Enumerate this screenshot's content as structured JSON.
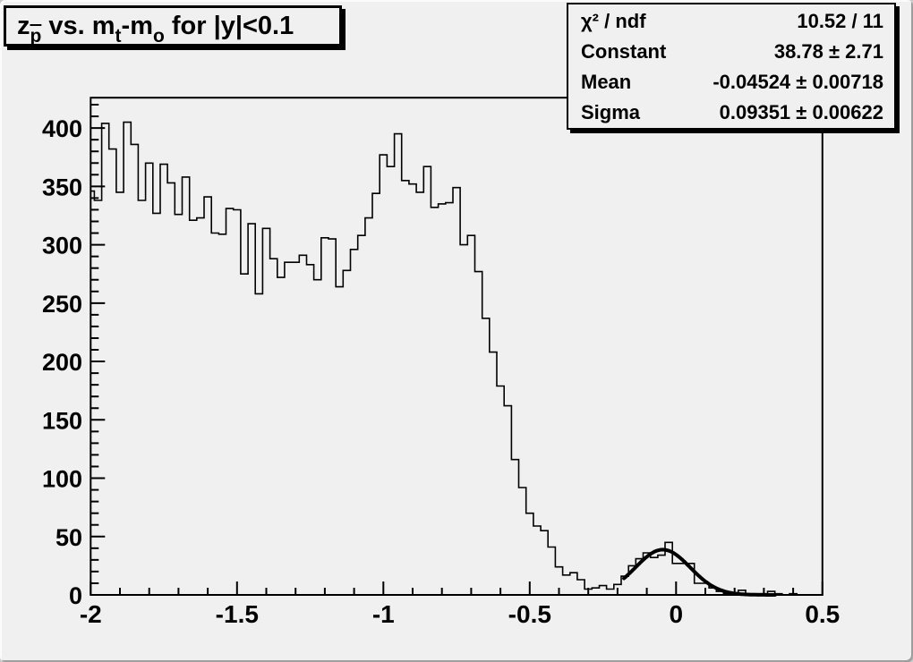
{
  "canvas": {
    "bg": "#f0f0f0",
    "line_color": "#000000"
  },
  "title_box": {
    "segments": [
      {
        "text": "z",
        "sub": false,
        "bar": false
      },
      {
        "text": "p",
        "sub": true,
        "bar": true
      },
      {
        "text": " vs. m",
        "sub": false,
        "bar": false
      },
      {
        "text": "t",
        "sub": true,
        "bar": false
      },
      {
        "text": "-m",
        "sub": false,
        "bar": false
      },
      {
        "text": "o",
        "sub": true,
        "bar": false
      },
      {
        "text": " for |y|<0.1",
        "sub": false,
        "bar": false
      }
    ]
  },
  "stats_box": {
    "rows": [
      {
        "label": "χ² / ndf",
        "value": "10.52 / 11"
      },
      {
        "label": "Constant",
        "value": "38.78 ± 2.71"
      },
      {
        "label": "Mean",
        "value": "-0.04524 ± 0.00718"
      },
      {
        "label": "Sigma",
        "value": "0.09351 ± 0.00622"
      }
    ]
  },
  "chart_data": {
    "type": "histogram",
    "title": "z_p̄ vs. m_t-m_o for |y|<0.1",
    "x_start": -2.0125,
    "bin_width": 0.025,
    "values": [
      346,
      338,
      404,
      382,
      345,
      405,
      386,
      338,
      370,
      327,
      369,
      353,
      326,
      358,
      321,
      323,
      341,
      310,
      309,
      331,
      330,
      275,
      318,
      258,
      314,
      288,
      272,
      285,
      285,
      291,
      283,
      270,
      306,
      305,
      264,
      278,
      296,
      308,
      323,
      344,
      377,
      367,
      395,
      355,
      352,
      345,
      367,
      332,
      335,
      336,
      349,
      300,
      308,
      277,
      237,
      208,
      179,
      162,
      116,
      92,
      70,
      59,
      55,
      41,
      24,
      17,
      19,
      13,
      5,
      6,
      8,
      5,
      9,
      16,
      25,
      31,
      36,
      32,
      34,
      45,
      27,
      27,
      27,
      10,
      10,
      6,
      3,
      1,
      1,
      4,
      1,
      1,
      1,
      3,
      1,
      0,
      1,
      0,
      0,
      0,
      0
    ],
    "xlim": [
      -2,
      0.5
    ],
    "ylim": [
      0,
      426
    ],
    "x_major_ticks": [
      -2,
      -1.5,
      -1,
      -0.5,
      0,
      0.5
    ],
    "x_tick_labels": [
      "-2",
      "-1.5",
      "-1",
      "-0.5",
      "0",
      "0.5"
    ],
    "x_minor_step": 0.1,
    "y_major_step": 50,
    "y_minor_step": 10,
    "y_minor_max": 420,
    "y_tick_labels": [
      "0",
      "50",
      "100",
      "150",
      "200",
      "250",
      "300",
      "350",
      "400"
    ],
    "grid": false,
    "fit": {
      "type": "gaussian",
      "constant": 38.78,
      "mean": -0.04524,
      "sigma": 0.09351,
      "draw_range": [
        -0.178,
        0.34
      ]
    }
  }
}
